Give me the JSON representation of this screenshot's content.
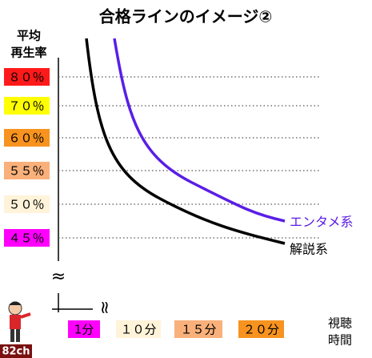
{
  "title": "合格ラインのイメージ②",
  "y_axis_label": [
    "平均",
    "再生率"
  ],
  "y_levels": [
    {
      "label": "８０％",
      "color": "#ff1a1a"
    },
    {
      "label": "７０％",
      "color": "#ffff00"
    },
    {
      "label": "６０％",
      "color": "#f7931e"
    },
    {
      "label": "５５％",
      "color": "#f9b07a"
    },
    {
      "label": "５０％",
      "color": "#fff3d9"
    },
    {
      "label": "４５％",
      "color": "#ff00ff"
    }
  ],
  "x_levels": [
    {
      "label": "1分",
      "color": "#ff00ff"
    },
    {
      "label": "１０分",
      "color": "#fff3d9"
    },
    {
      "label": "１５分",
      "color": "#f9b07a"
    },
    {
      "label": "２０分",
      "color": "#f7931e"
    }
  ],
  "x_axis_label": [
    "視聴",
    "時間"
  ],
  "curves": [
    {
      "label": "エンタメ系",
      "color": "#5a1ee6"
    },
    {
      "label": "解説系",
      "color": "#000000"
    }
  ],
  "logo": "82ch"
}
